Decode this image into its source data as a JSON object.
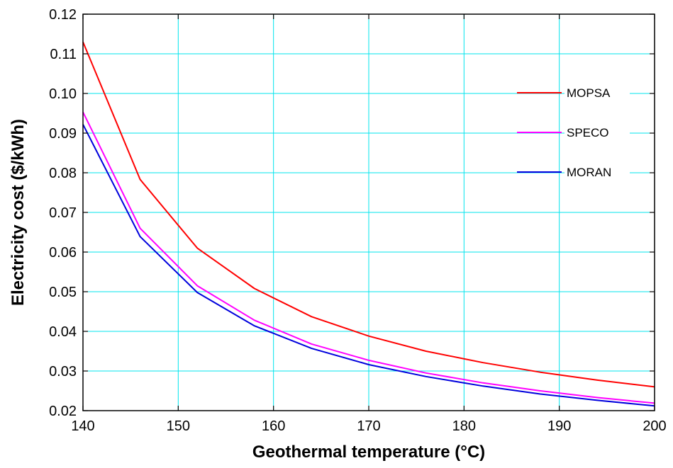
{
  "chart_data": {
    "type": "line",
    "title": "",
    "xlabel": "Geothermal temperature (°C)",
    "ylabel": "Electricity cost ($/kWh)",
    "xlim": [
      140,
      200
    ],
    "ylim": [
      0.02,
      0.12
    ],
    "xticks": [
      140,
      150,
      160,
      170,
      180,
      190,
      200
    ],
    "xtick_labels": [
      "140",
      "150",
      "160",
      "170",
      "180",
      "190",
      "200"
    ],
    "yticks": [
      0.02,
      0.03,
      0.04,
      0.05,
      0.06,
      0.07,
      0.08,
      0.09,
      0.1,
      0.11,
      0.12
    ],
    "ytick_labels": [
      "0.02",
      "0.03",
      "0.04",
      "0.05",
      "0.06",
      "0.07",
      "0.08",
      "0.09",
      "0.10",
      "0.11",
      "0.12"
    ],
    "grid": true,
    "legend_position": "right",
    "x": [
      140,
      146,
      152,
      158,
      164,
      170,
      176,
      182,
      188,
      194,
      200
    ],
    "series": [
      {
        "name": "MOPSA",
        "color": "#ff0000",
        "values": [
          0.113,
          0.0783,
          0.061,
          0.0508,
          0.0437,
          0.0388,
          0.035,
          0.0321,
          0.0297,
          0.0277,
          0.026
        ]
      },
      {
        "name": "SPECO",
        "color": "#ff00ff",
        "values": [
          0.0953,
          0.066,
          0.0515,
          0.0428,
          0.0368,
          0.0327,
          0.0295,
          0.027,
          0.025,
          0.0233,
          0.0219
        ]
      },
      {
        "name": "MORAN",
        "color": "#0000dd",
        "values": [
          0.0922,
          0.0639,
          0.0498,
          0.0414,
          0.0357,
          0.0316,
          0.0286,
          0.0262,
          0.0242,
          0.0226,
          0.0212
        ]
      }
    ],
    "colors": {
      "grid": "#00e5ee",
      "axis": "#000000",
      "background": "#ffffff"
    }
  }
}
